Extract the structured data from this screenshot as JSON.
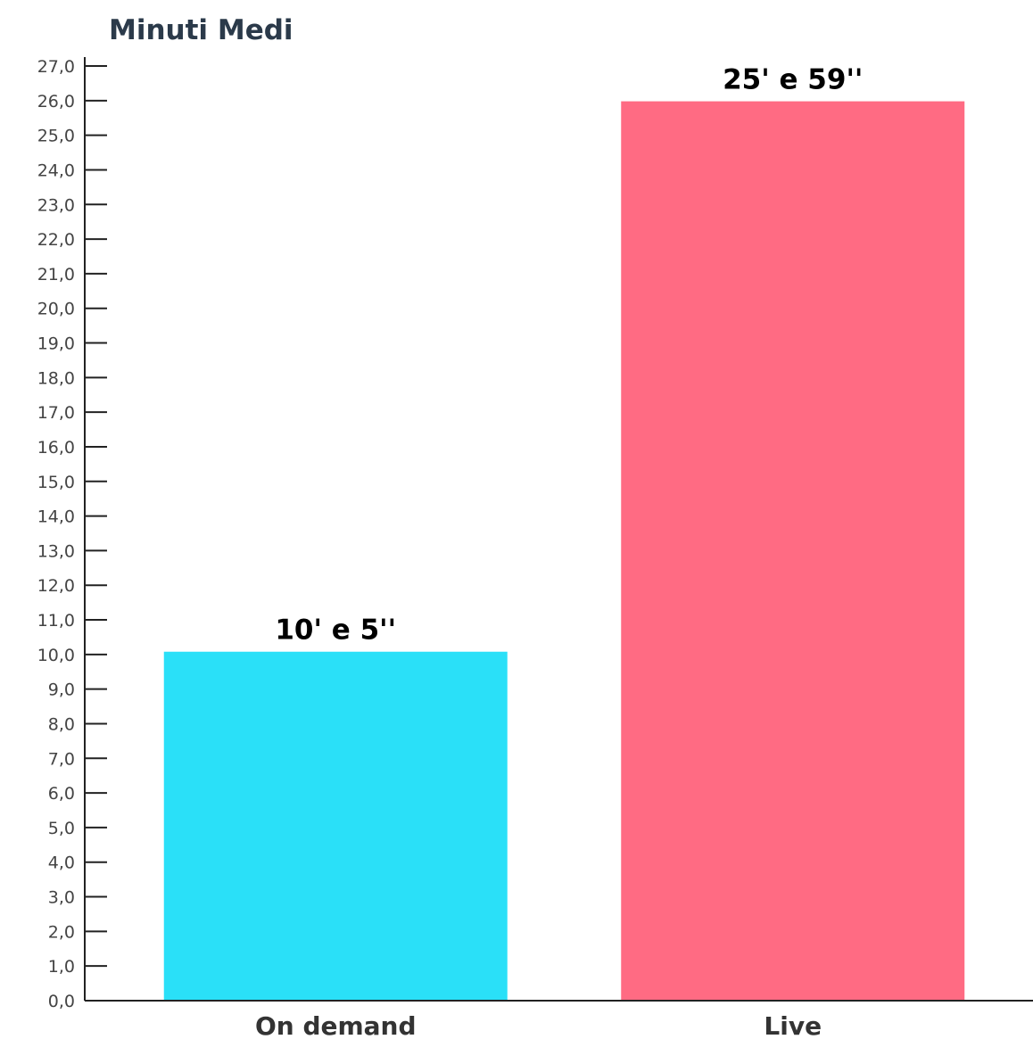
{
  "chart_data": {
    "type": "bar",
    "title": "Minuti Medi",
    "xlabel": "",
    "ylabel": "",
    "categories": [
      "On demand",
      "Live"
    ],
    "values": [
      10.08,
      25.98
    ],
    "data_labels": [
      "10' e 5''",
      "25' e 59''"
    ],
    "colors": [
      "#2ae0f8",
      "#ff6b83"
    ],
    "ylim": [
      0,
      27
    ],
    "y_tick_step": 1,
    "y_tick_labels": [
      "0,0",
      "1,0",
      "2,0",
      "3,0",
      "4,0",
      "5,0",
      "6,0",
      "7,0",
      "8,0",
      "9,0",
      "10,0",
      "11,0",
      "12,0",
      "13,0",
      "14,0",
      "15,0",
      "16,0",
      "17,0",
      "18,0",
      "19,0",
      "20,0",
      "21,0",
      "22,0",
      "23,0",
      "24,0",
      "25,0",
      "26,0",
      "27,0"
    ],
    "grid": false,
    "legend": "none"
  }
}
